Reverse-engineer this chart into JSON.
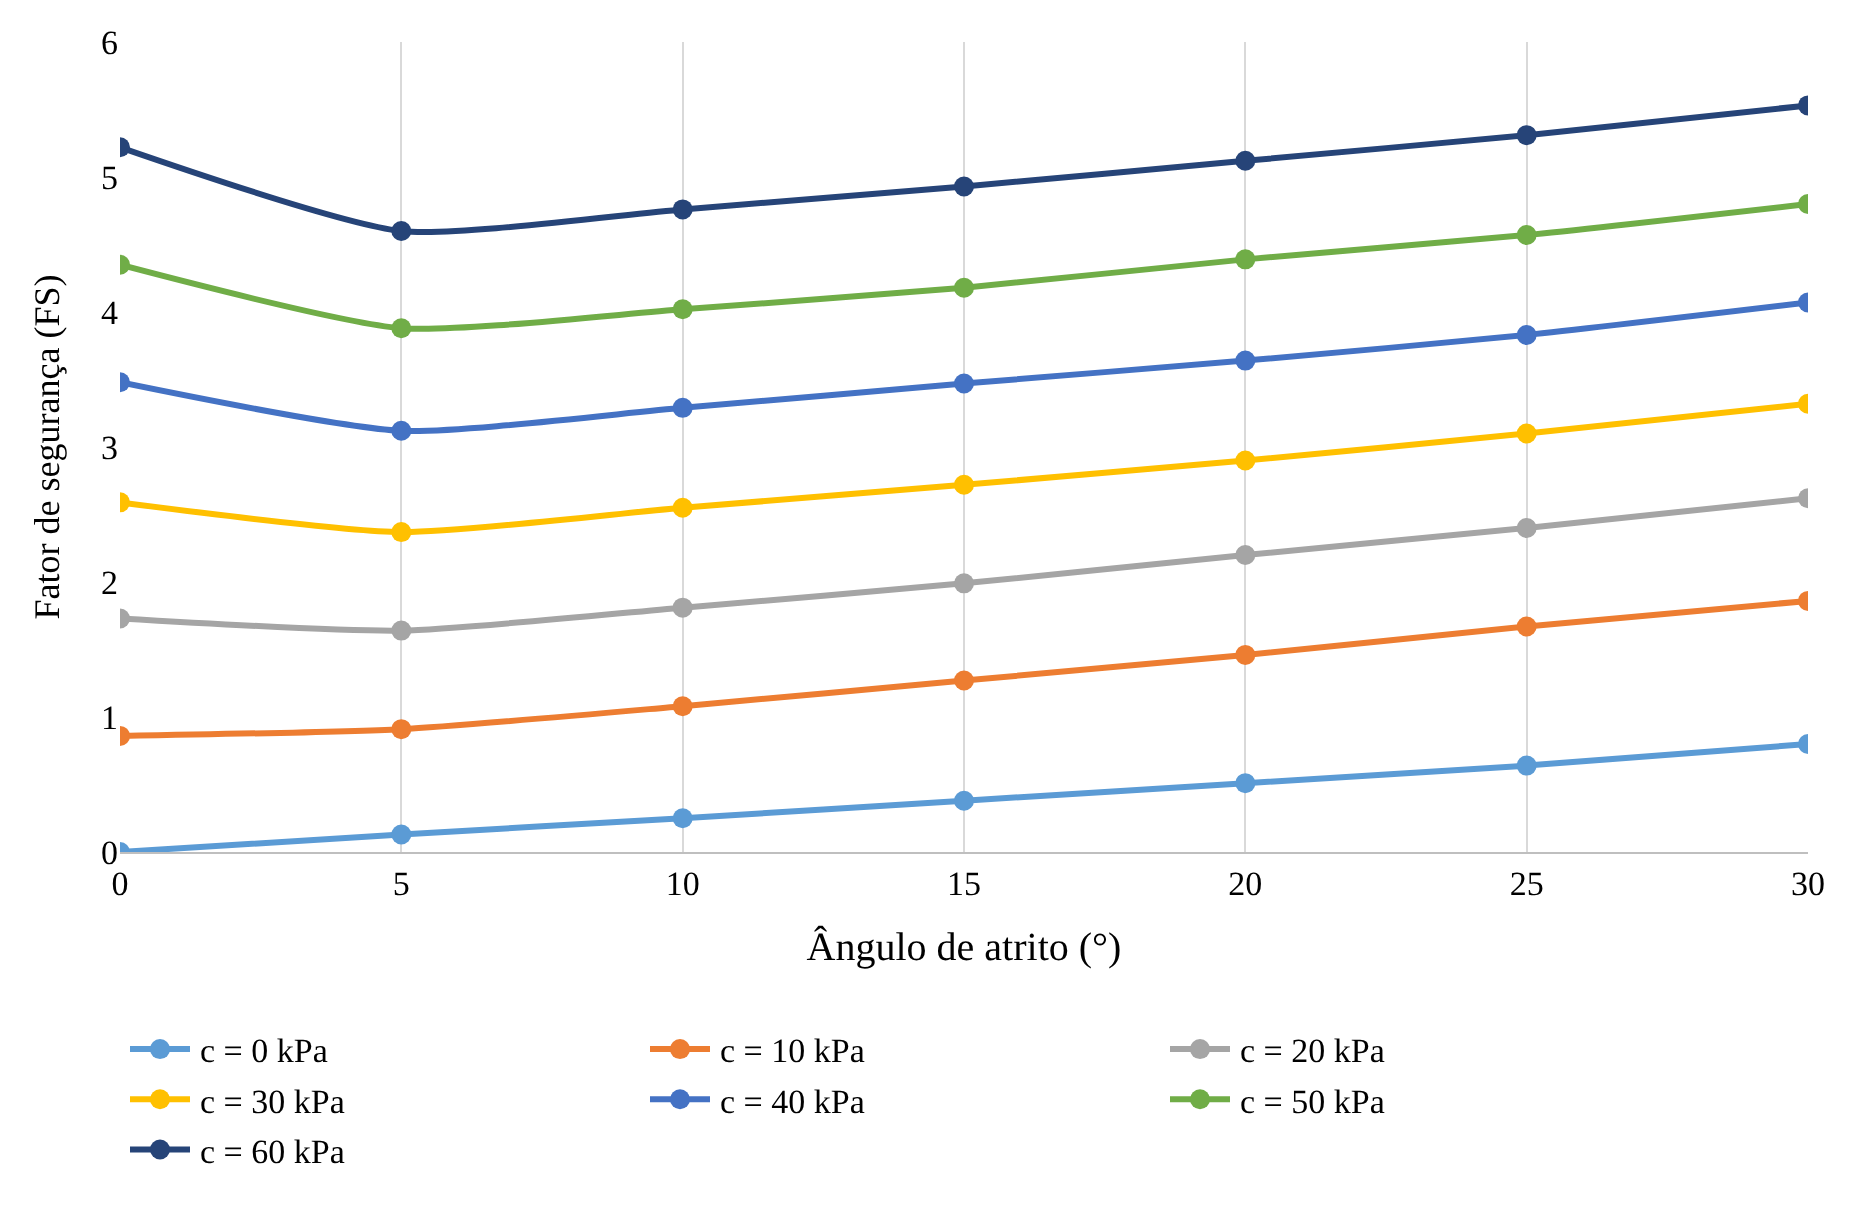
{
  "chart_data": {
    "type": "line",
    "xlabel": "Ângulo de atrito (°)",
    "ylabel": "Fator de segurança (FS)",
    "x": [
      0,
      5,
      10,
      15,
      20,
      25,
      30
    ],
    "xlim": [
      0,
      30
    ],
    "xticks": [
      0,
      5,
      10,
      15,
      20,
      25,
      30
    ],
    "ylim": [
      0,
      6
    ],
    "yticks": [
      0,
      1,
      2,
      3,
      4,
      5,
      6
    ],
    "grid": "x",
    "legend": "bottom",
    "marker": "circle",
    "line_style": "solid",
    "series": [
      {
        "name": "c = 0 kPa",
        "color": "#5b9bd5",
        "values": [
          0,
          0.13,
          0.25,
          0.38,
          0.51,
          0.64,
          0.8
        ]
      },
      {
        "name": "c = 10 kPa",
        "color": "#ed7d31",
        "values": [
          0.86,
          0.91,
          1.08,
          1.27,
          1.46,
          1.67,
          1.86
        ]
      },
      {
        "name": "c = 20 kPa",
        "color": "#a5a5a5",
        "values": [
          1.73,
          1.64,
          1.81,
          1.99,
          2.2,
          2.4,
          2.62
        ]
      },
      {
        "name": "c = 30 kPa",
        "color": "#ffc000",
        "values": [
          2.59,
          2.37,
          2.55,
          2.72,
          2.9,
          3.1,
          3.32
        ]
      },
      {
        "name": "c = 40 kPa",
        "color": "#4472c4",
        "values": [
          3.48,
          3.12,
          3.29,
          3.47,
          3.64,
          3.83,
          4.07
        ]
      },
      {
        "name": "c = 50 kPa",
        "color": "#70ad47",
        "values": [
          4.35,
          3.88,
          4.02,
          4.18,
          4.39,
          4.57,
          4.8
        ]
      },
      {
        "name": "c = 60 kPa",
        "color": "#264478",
        "values": [
          5.22,
          4.6,
          4.76,
          4.93,
          5.12,
          5.31,
          5.53
        ]
      }
    ]
  }
}
